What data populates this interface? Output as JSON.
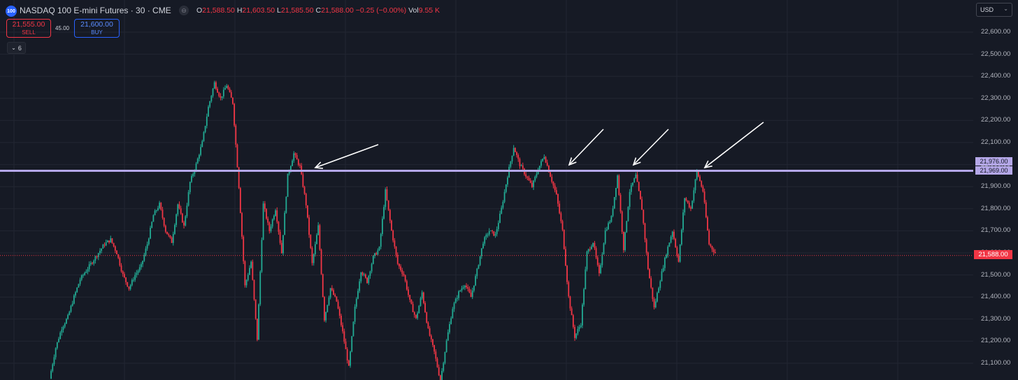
{
  "header": {
    "symbol_logo": "100",
    "symbol_title": "NASDAQ 100 E-mini Futures · 30 · CME",
    "status_dot": "⊖",
    "ohlc": {
      "o_label": "O",
      "o": "21,588.50",
      "h_label": "H",
      "h": "21,603.50",
      "l_label": "L",
      "l": "21,585.50",
      "c_label": "C",
      "c": "21,588.00",
      "change": "−0.25 (−0.00%)",
      "vol_label": "Vol",
      "vol": "9.55 K"
    }
  },
  "trade": {
    "sell_price": "21,555.00",
    "sell_label": "SELL",
    "spread": "45.00",
    "buy_price": "21,600.00",
    "buy_label": "BUY"
  },
  "indicators": {
    "count_label": "6",
    "toggle_icon": "chevron-down-icon"
  },
  "currency": {
    "value": "USD",
    "caret": "⌄"
  },
  "price_axis": {
    "ticks": [
      "22,600.00",
      "22,500.00",
      "22,400.00",
      "22,300.00",
      "22,200.00",
      "22,100.00",
      "22,000.00",
      "21,900.00",
      "21,800.00",
      "21,700.00",
      "21,600.00",
      "21,500.00",
      "21,400.00",
      "21,300.00",
      "21,200.00",
      "21,100.00"
    ],
    "level_top": "21,976.00",
    "level_bottom": "21,969.00",
    "last_price": "21,588.00"
  },
  "colors": {
    "background": "#161a25",
    "up": "#22ab94",
    "down": "#f23645",
    "level_line": "#b4a7e8",
    "grid": "#222632"
  },
  "chart_data": {
    "type": "candlestick",
    "ylim": [
      21060,
      22690
    ],
    "horizontal_level": 21972,
    "last_price": 21588,
    "price_path": [
      21030,
      21170,
      21260,
      21310,
      21400,
      21480,
      21520,
      21560,
      21600,
      21640,
      21660,
      21600,
      21500,
      21440,
      21500,
      21540,
      21640,
      21770,
      21820,
      21700,
      21650,
      21820,
      21720,
      21920,
      22000,
      22100,
      22260,
      22370,
      22300,
      22360,
      22280,
      21900,
      21450,
      21560,
      21210,
      21820,
      21700,
      21800,
      21600,
      21950,
      22050,
      21990,
      21820,
      21550,
      21720,
      21300,
      21440,
      21380,
      21240,
      21080,
      21350,
      21520,
      21470,
      21580,
      21620,
      21880,
      21700,
      21550,
      21500,
      21380,
      21300,
      21420,
      21250,
      21150,
      21020,
      21200,
      21350,
      21420,
      21460,
      21400,
      21520,
      21650,
      21700,
      21680,
      21800,
      21950,
      22080,
      22000,
      21950,
      21900,
      21980,
      22040,
      21950,
      21860,
      21700,
      21400,
      21220,
      21280,
      21600,
      21650,
      21500,
      21700,
      21760,
      21950,
      21620,
      21880,
      21950,
      21800,
      21530,
      21350,
      21480,
      21600,
      21700,
      21560,
      21850,
      21800,
      21970,
      21880,
      21640,
      21600
    ],
    "price_path_note": "",
    "annotations": [
      {
        "type": "arrow",
        "target_price": 21976
      },
      {
        "type": "arrow",
        "target_price": 21976
      },
      {
        "type": "arrow",
        "target_price": 21976
      },
      {
        "type": "arrow",
        "target_price": 21976
      }
    ]
  }
}
